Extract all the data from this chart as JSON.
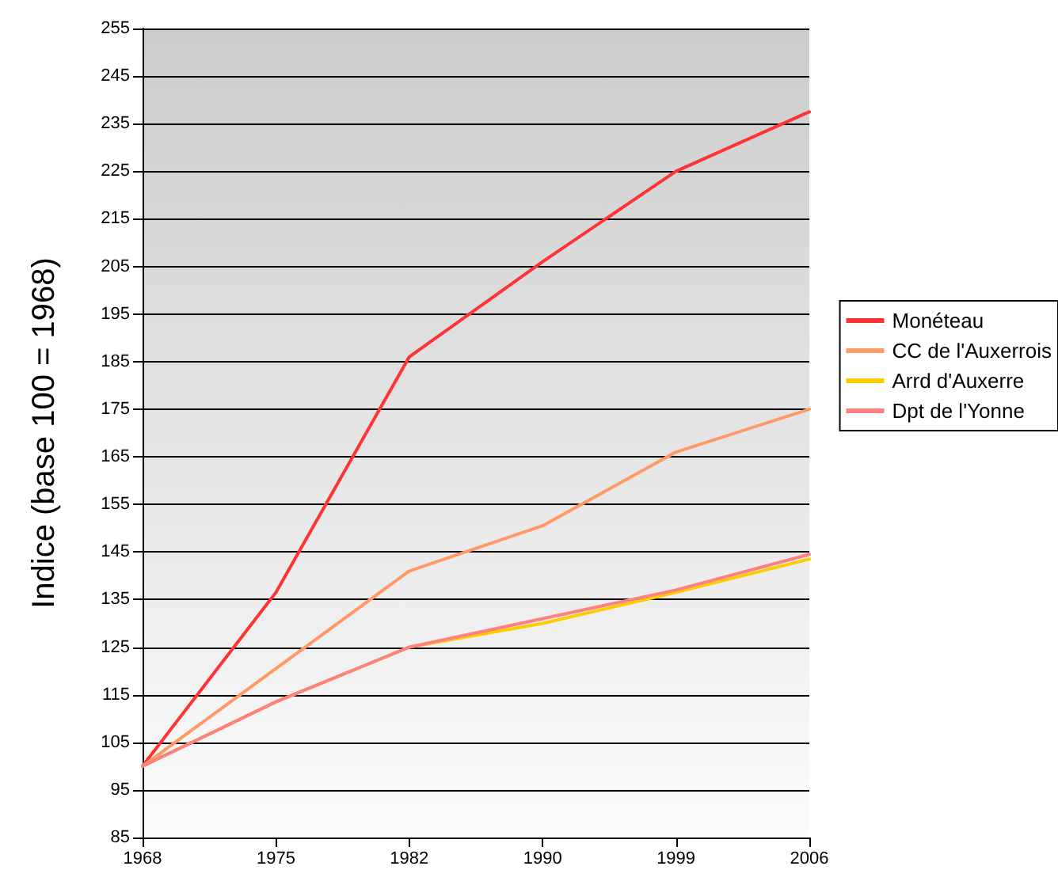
{
  "chart_data": {
    "type": "line",
    "ylabel": "Indice (base 100 = 1968)",
    "categories": [
      "1968",
      "1975",
      "1982",
      "1990",
      "1999",
      "2006"
    ],
    "series": [
      {
        "name": "Monéteau",
        "color": "#ff3333",
        "values": [
          100,
          136.5,
          186,
          206,
          225,
          237.5
        ]
      },
      {
        "name": "CC de l'Auxerrois",
        "color": "#ff9966",
        "values": [
          100,
          120.5,
          141,
          150.5,
          166,
          175
        ]
      },
      {
        "name": "Arrd d'Auxerre",
        "color": "#ffcc00",
        "values": [
          100,
          113.5,
          125,
          130,
          136.5,
          143.5
        ]
      },
      {
        "name": "Dpt de l'Yonne",
        "color": "#ff8080",
        "values": [
          100,
          113.5,
          125,
          131,
          137,
          144.5
        ]
      }
    ],
    "ylim": [
      85,
      255
    ],
    "yticks": [
      85,
      95,
      105,
      115,
      125,
      135,
      145,
      155,
      165,
      175,
      185,
      195,
      205,
      215,
      225,
      235,
      245,
      255
    ],
    "grid": "y",
    "legend": "right",
    "marker": "none",
    "line_style": "solid"
  }
}
